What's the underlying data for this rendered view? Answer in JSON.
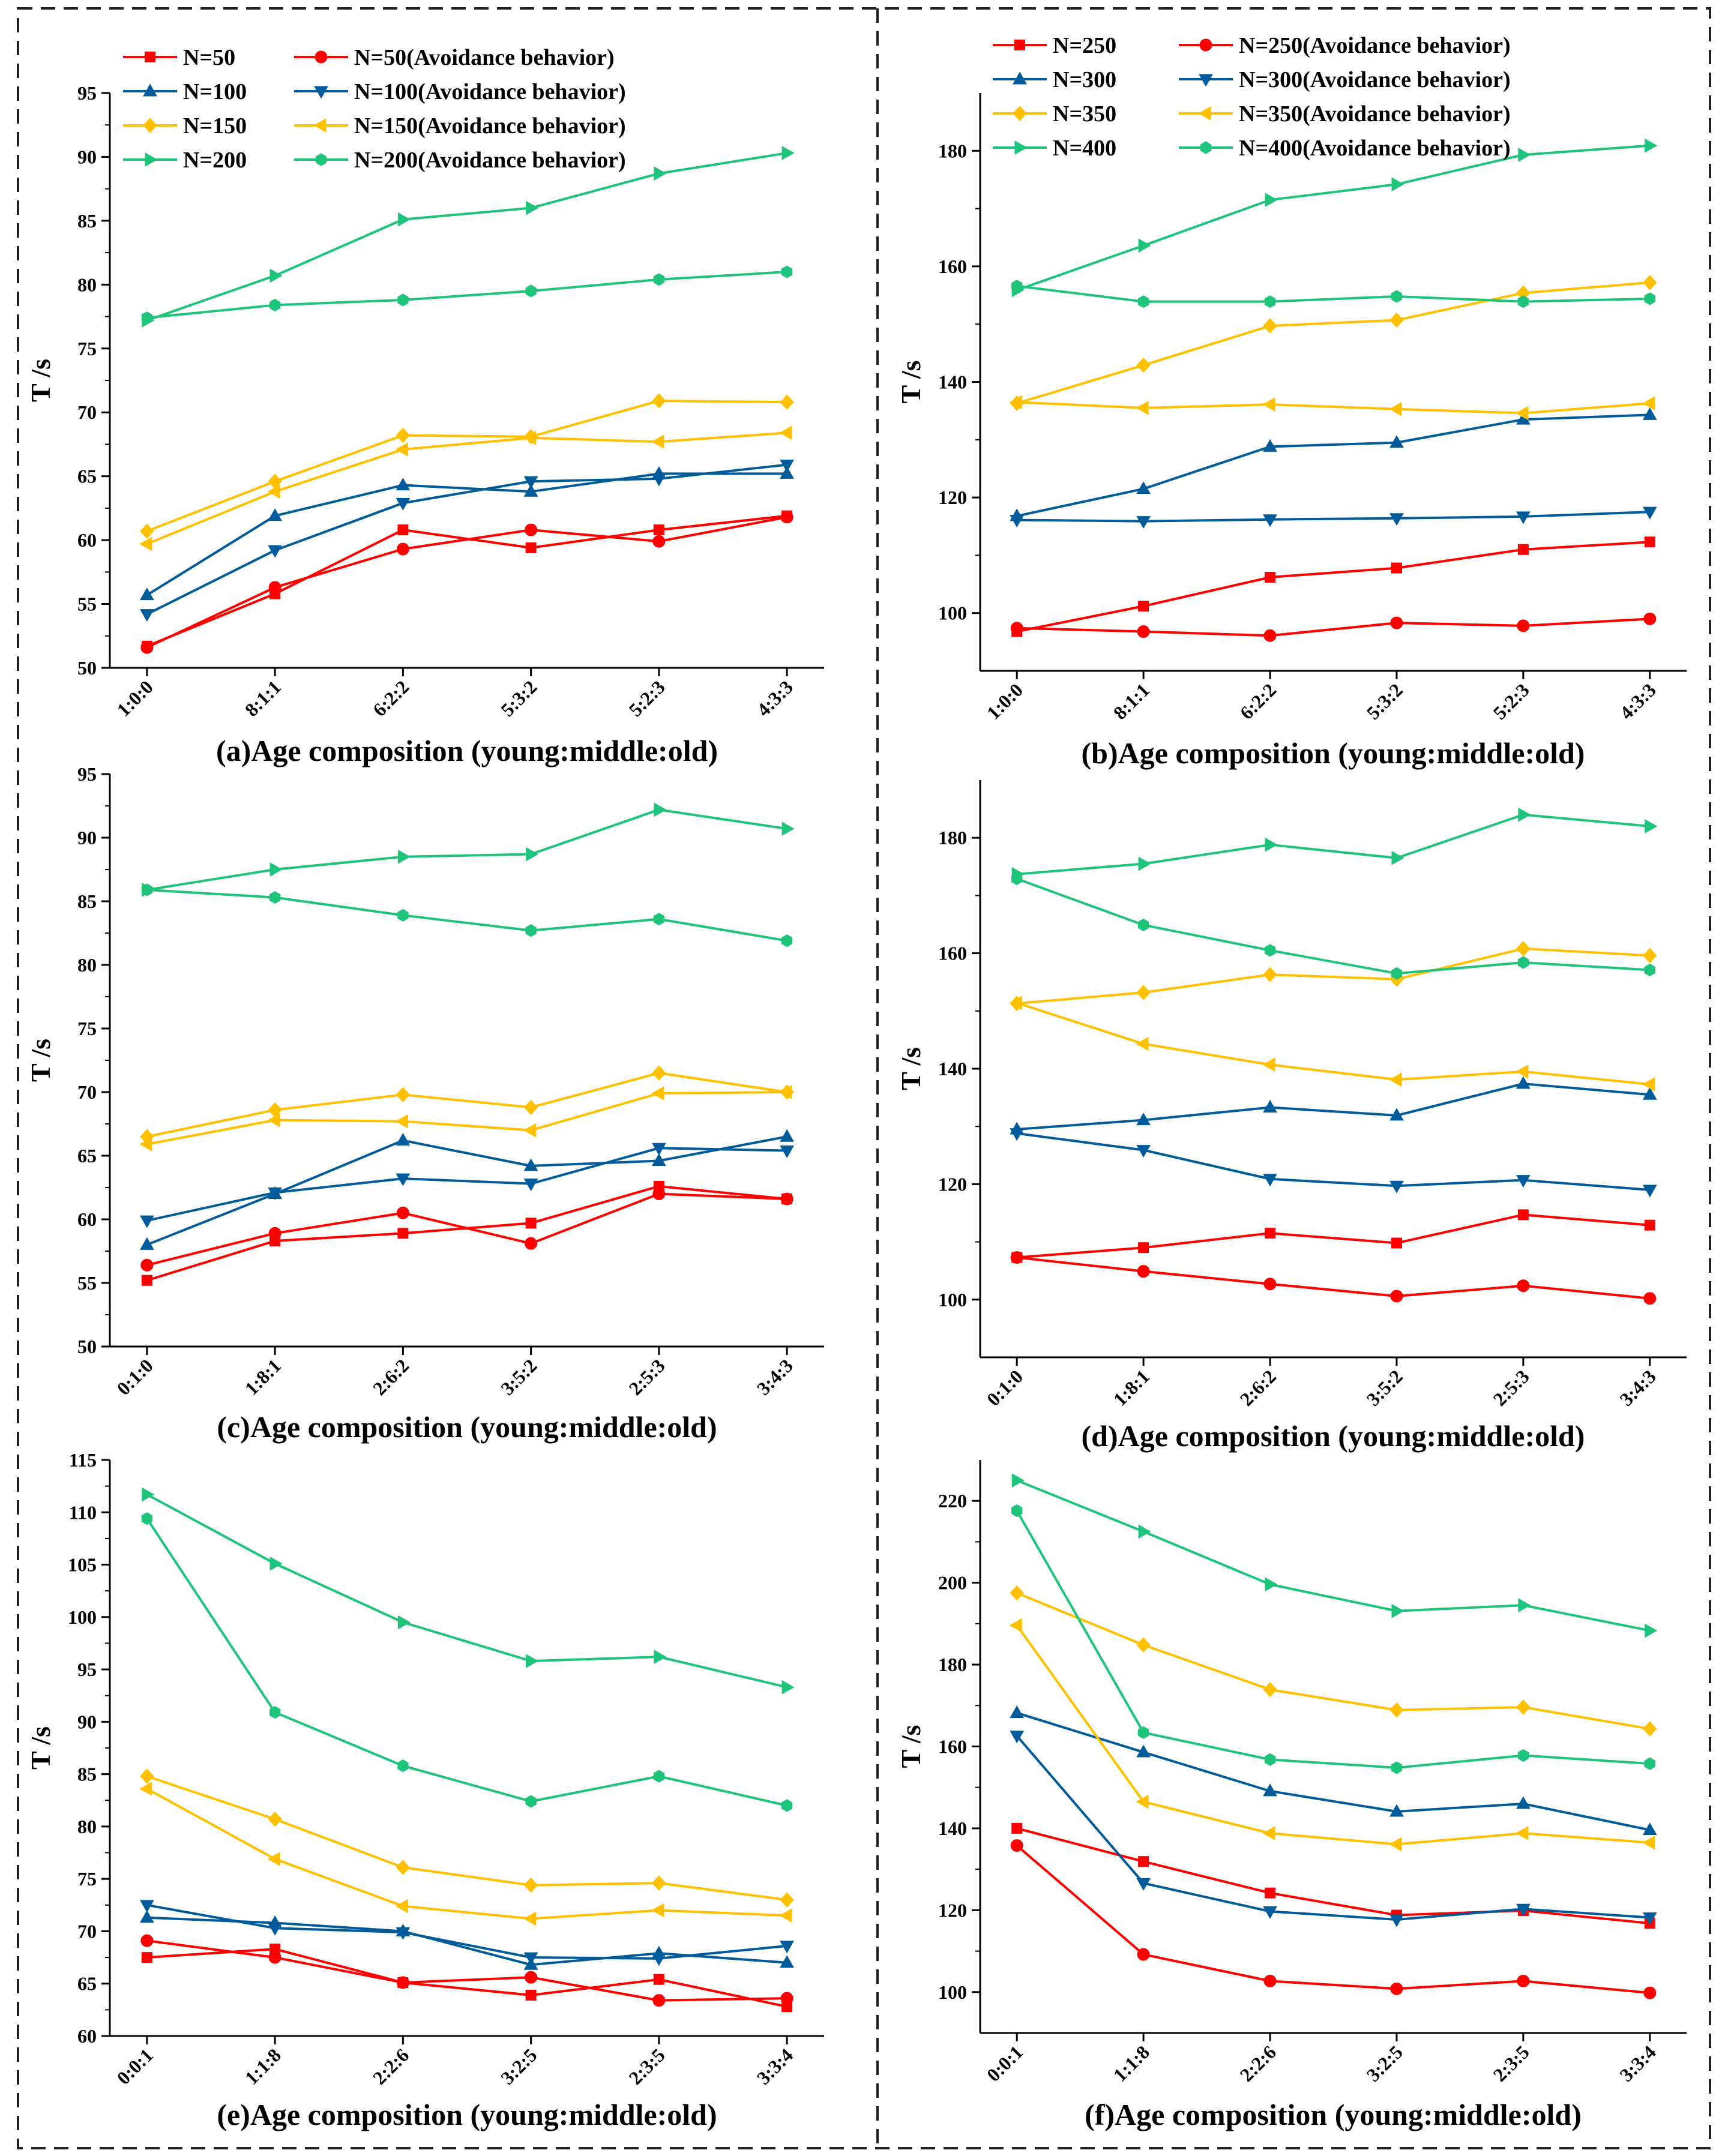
{
  "chart_data": [
    {
      "id": "a",
      "type": "line",
      "caption": "(a)Age composition (young:middle:old)",
      "ylabel": "T /s",
      "ylim": [
        50,
        95
      ],
      "yticks": [
        50,
        55,
        60,
        65,
        70,
        75,
        80,
        85,
        90,
        95
      ],
      "categories": [
        "1:0:0",
        "8:1:1",
        "6:2:2",
        "5:3:2",
        "5:2:3",
        "4:3:3"
      ],
      "series": [
        {
          "name": "N=50",
          "color": "#ff0000",
          "marker": "square",
          "values": [
            51.7,
            55.8,
            60.8,
            59.4,
            60.8,
            61.9
          ]
        },
        {
          "name": "N=50(Avoidance behavior)",
          "color": "#ff0000",
          "marker": "circle",
          "values": [
            51.6,
            56.3,
            59.3,
            60.8,
            59.9,
            61.8
          ]
        },
        {
          "name": "N=100",
          "color": "#005b9a",
          "marker": "triangle-up",
          "values": [
            55.7,
            61.9,
            64.3,
            63.8,
            65.2,
            65.2
          ]
        },
        {
          "name": "N=100(Avoidance behavior)",
          "color": "#005b9a",
          "marker": "triangle-down",
          "values": [
            54.2,
            59.2,
            62.9,
            64.6,
            64.8,
            65.9
          ]
        },
        {
          "name": "N=150",
          "color": "#ffc000",
          "marker": "diamond",
          "values": [
            60.7,
            64.6,
            68.2,
            68.1,
            70.9,
            70.8
          ]
        },
        {
          "name": "N=150(Avoidance behavior)",
          "color": "#ffc000",
          "marker": "triangle-left",
          "values": [
            59.7,
            63.8,
            67.1,
            68.0,
            67.7,
            68.4
          ]
        },
        {
          "name": "N=200",
          "color": "#1ec47a",
          "marker": "triangle-right",
          "values": [
            77.2,
            80.7,
            85.1,
            86.0,
            88.7,
            90.3
          ]
        },
        {
          "name": "N=200(Avoidance behavior)",
          "color": "#1ec47a",
          "marker": "hexagon",
          "values": [
            77.4,
            78.4,
            78.8,
            79.5,
            80.4,
            81.0
          ]
        }
      ]
    },
    {
      "id": "b",
      "type": "line",
      "caption": "(b)Age composition (young:middle:old)",
      "ylabel": "T /s",
      "ylim": [
        90,
        190
      ],
      "yticks": [
        100,
        120,
        140,
        160,
        180
      ],
      "categories": [
        "1:0:0",
        "8:1:1",
        "6:2:2",
        "5:3:2",
        "5:2:3",
        "4:3:3"
      ],
      "series": [
        {
          "name": "N=250",
          "color": "#ff0000",
          "marker": "square",
          "values": [
            96.8,
            101.2,
            106.2,
            107.8,
            111.0,
            112.3
          ]
        },
        {
          "name": "N=250(Avoidance behavior)",
          "color": "#ff0000",
          "marker": "circle",
          "values": [
            97.4,
            96.8,
            96.1,
            98.3,
            97.8,
            99.0
          ]
        },
        {
          "name": "N=300",
          "color": "#005b9a",
          "marker": "triangle-up",
          "values": [
            116.8,
            121.5,
            128.8,
            129.5,
            133.5,
            134.3
          ]
        },
        {
          "name": "N=300(Avoidance behavior)",
          "color": "#005b9a",
          "marker": "triangle-down",
          "values": [
            116.1,
            115.9,
            116.2,
            116.4,
            116.7,
            117.5
          ]
        },
        {
          "name": "N=350",
          "color": "#ffc000",
          "marker": "diamond",
          "values": [
            136.3,
            142.9,
            149.7,
            150.7,
            155.4,
            157.2
          ]
        },
        {
          "name": "N=350(Avoidance behavior)",
          "color": "#ffc000",
          "marker": "triangle-left",
          "values": [
            136.5,
            135.5,
            136.1,
            135.3,
            134.6,
            136.3
          ]
        },
        {
          "name": "N=400",
          "color": "#1ec47a",
          "marker": "triangle-right",
          "values": [
            155.9,
            163.6,
            171.5,
            174.2,
            179.3,
            180.9
          ]
        },
        {
          "name": "N=400(Avoidance behavior)",
          "color": "#1ec47a",
          "marker": "hexagon",
          "values": [
            156.6,
            153.9,
            153.9,
            154.8,
            153.9,
            154.4
          ]
        }
      ]
    },
    {
      "id": "c",
      "type": "line",
      "caption": "(c)Age composition (young:middle:old)",
      "ylabel": "T /s",
      "ylim": [
        50,
        95
      ],
      "yticks": [
        50,
        55,
        60,
        65,
        70,
        75,
        80,
        85,
        90,
        95
      ],
      "categories": [
        "0:1:0",
        "1:8:1",
        "2:6:2",
        "3:5:2",
        "2:5:3",
        "3:4:3"
      ],
      "series": [
        {
          "name": "N=50",
          "color": "#ff0000",
          "marker": "square",
          "values": [
            55.2,
            58.3,
            58.9,
            59.7,
            62.6,
            61.6
          ]
        },
        {
          "name": "N=50(Avoidance behavior)",
          "color": "#ff0000",
          "marker": "circle",
          "values": [
            56.4,
            58.9,
            60.5,
            58.1,
            62.0,
            61.6
          ]
        },
        {
          "name": "N=100",
          "color": "#005b9a",
          "marker": "triangle-up",
          "values": [
            58.0,
            62.0,
            66.2,
            64.2,
            64.6,
            66.5
          ]
        },
        {
          "name": "N=100(Avoidance behavior)",
          "color": "#005b9a",
          "marker": "triangle-down",
          "values": [
            59.9,
            62.1,
            63.2,
            62.8,
            65.6,
            65.4
          ]
        },
        {
          "name": "N=150",
          "color": "#ffc000",
          "marker": "diamond",
          "values": [
            66.5,
            68.6,
            69.8,
            68.8,
            71.5,
            70.0
          ]
        },
        {
          "name": "N=150(Avoidance behavior)",
          "color": "#ffc000",
          "marker": "triangle-left",
          "values": [
            65.9,
            67.8,
            67.7,
            67.0,
            69.9,
            70.0
          ]
        },
        {
          "name": "N=200",
          "color": "#1ec47a",
          "marker": "triangle-right",
          "values": [
            85.9,
            87.5,
            88.5,
            88.7,
            92.2,
            90.7
          ]
        },
        {
          "name": "N=200(Avoidance behavior)",
          "color": "#1ec47a",
          "marker": "hexagon",
          "values": [
            85.9,
            85.3,
            83.9,
            82.7,
            83.6,
            81.9
          ]
        }
      ]
    },
    {
      "id": "d",
      "type": "line",
      "caption": "(d)Age composition (young:middle:old)",
      "ylabel": "T /s",
      "ylim": [
        90,
        190
      ],
      "yticks": [
        100,
        120,
        140,
        160,
        180
      ],
      "categories": [
        "0:1:0",
        "1:8:1",
        "2:6:2",
        "3:5:2",
        "2:5:3",
        "3:4:3"
      ],
      "series": [
        {
          "name": "N=250",
          "color": "#ff0000",
          "marker": "square",
          "values": [
            107.3,
            109.0,
            111.5,
            109.8,
            114.7,
            112.9
          ]
        },
        {
          "name": "N=250(Avoidance behavior)",
          "color": "#ff0000",
          "marker": "circle",
          "values": [
            107.3,
            104.9,
            102.7,
            100.6,
            102.4,
            100.2
          ]
        },
        {
          "name": "N=300",
          "color": "#005b9a",
          "marker": "triangle-up",
          "values": [
            129.5,
            131.1,
            133.3,
            131.9,
            137.4,
            135.5
          ]
        },
        {
          "name": "N=300(Avoidance behavior)",
          "color": "#005b9a",
          "marker": "triangle-down",
          "values": [
            128.8,
            125.9,
            120.9,
            119.7,
            120.7,
            119.0
          ]
        },
        {
          "name": "N=350",
          "color": "#ffc000",
          "marker": "diamond",
          "values": [
            151.3,
            153.2,
            156.3,
            155.5,
            160.8,
            159.6
          ]
        },
        {
          "name": "N=350(Avoidance behavior)",
          "color": "#ffc000",
          "marker": "triangle-left",
          "values": [
            151.4,
            144.3,
            140.7,
            138.1,
            139.5,
            137.3
          ]
        },
        {
          "name": "N=400",
          "color": "#1ec47a",
          "marker": "triangle-right",
          "values": [
            173.7,
            175.5,
            178.8,
            176.5,
            184.0,
            182.0
          ]
        },
        {
          "name": "N=400(Avoidance behavior)",
          "color": "#1ec47a",
          "marker": "hexagon",
          "values": [
            172.9,
            164.9,
            160.5,
            156.5,
            158.4,
            157.1
          ]
        }
      ]
    },
    {
      "id": "e",
      "type": "line",
      "caption": "(e)Age composition (young:middle:old)",
      "ylabel": "T /s",
      "ylim": [
        60,
        115
      ],
      "yticks": [
        60,
        65,
        70,
        75,
        80,
        85,
        90,
        95,
        100,
        105,
        110,
        115
      ],
      "categories": [
        "0:0:1",
        "1:1:8",
        "2:2:6",
        "3:2:5",
        "2:3:5",
        "3:3:4"
      ],
      "series": [
        {
          "name": "N=50",
          "color": "#ff0000",
          "marker": "square",
          "values": [
            67.5,
            68.3,
            65.1,
            63.9,
            65.4,
            62.8
          ]
        },
        {
          "name": "N=50(Avoidance behavior)",
          "color": "#ff0000",
          "marker": "circle",
          "values": [
            69.1,
            67.5,
            65.1,
            65.6,
            63.4,
            63.6
          ]
        },
        {
          "name": "N=100",
          "color": "#005b9a",
          "marker": "triangle-up",
          "values": [
            71.3,
            70.8,
            70.0,
            66.8,
            67.9,
            67.0
          ]
        },
        {
          "name": "N=100(Avoidance behavior)",
          "color": "#005b9a",
          "marker": "triangle-down",
          "values": [
            72.5,
            70.3,
            69.9,
            67.5,
            67.4,
            68.6
          ]
        },
        {
          "name": "N=150",
          "color": "#ffc000",
          "marker": "diamond",
          "values": [
            84.8,
            80.7,
            76.1,
            74.4,
            74.6,
            73.0
          ]
        },
        {
          "name": "N=150(Avoidance behavior)",
          "color": "#ffc000",
          "marker": "triangle-left",
          "values": [
            83.6,
            76.9,
            72.4,
            71.2,
            72.0,
            71.5
          ]
        },
        {
          "name": "N=200",
          "color": "#1ec47a",
          "marker": "triangle-right",
          "values": [
            111.7,
            105.1,
            99.5,
            95.8,
            96.2,
            93.3
          ]
        },
        {
          "name": "N=200(Avoidance behavior)",
          "color": "#1ec47a",
          "marker": "hexagon",
          "values": [
            109.4,
            90.9,
            85.8,
            82.4,
            84.8,
            82.0
          ]
        }
      ]
    },
    {
      "id": "f",
      "type": "line",
      "caption": "(f)Age composition (young:middle:old)",
      "ylabel": "T /s",
      "ylim": [
        90,
        230
      ],
      "yticks": [
        100,
        120,
        140,
        160,
        180,
        200,
        220
      ],
      "categories": [
        "0:0:1",
        "1:1:8",
        "2:2:6",
        "3:2:5",
        "2:3:5",
        "3:3:4"
      ],
      "series": [
        {
          "name": "N=250",
          "color": "#ff0000",
          "marker": "square",
          "values": [
            140.0,
            131.9,
            124.2,
            118.8,
            119.9,
            116.8
          ]
        },
        {
          "name": "N=250(Avoidance behavior)",
          "color": "#ff0000",
          "marker": "circle",
          "values": [
            135.8,
            109.2,
            102.7,
            100.8,
            102.7,
            99.8
          ]
        },
        {
          "name": "N=300",
          "color": "#005b9a",
          "marker": "triangle-up",
          "values": [
            168.2,
            158.6,
            149.1,
            144.1,
            146.0,
            139.6
          ]
        },
        {
          "name": "N=300(Avoidance behavior)",
          "color": "#005b9a",
          "marker": "triangle-down",
          "values": [
            162.6,
            126.6,
            119.7,
            117.7,
            120.3,
            118.2
          ]
        },
        {
          "name": "N=350",
          "color": "#ffc000",
          "marker": "diamond",
          "values": [
            197.5,
            184.8,
            173.9,
            168.9,
            169.6,
            164.3
          ]
        },
        {
          "name": "N=350(Avoidance behavior)",
          "color": "#ffc000",
          "marker": "triangle-left",
          "values": [
            189.6,
            146.5,
            138.8,
            136.1,
            138.8,
            136.5
          ]
        },
        {
          "name": "N=400",
          "color": "#1ec47a",
          "marker": "triangle-right",
          "values": [
            225.0,
            212.5,
            199.6,
            193.1,
            194.5,
            188.3
          ]
        },
        {
          "name": "N=400(Avoidance behavior)",
          "color": "#1ec47a",
          "marker": "hexagon",
          "values": [
            217.6,
            163.4,
            156.8,
            154.8,
            157.8,
            155.8
          ]
        }
      ]
    }
  ]
}
